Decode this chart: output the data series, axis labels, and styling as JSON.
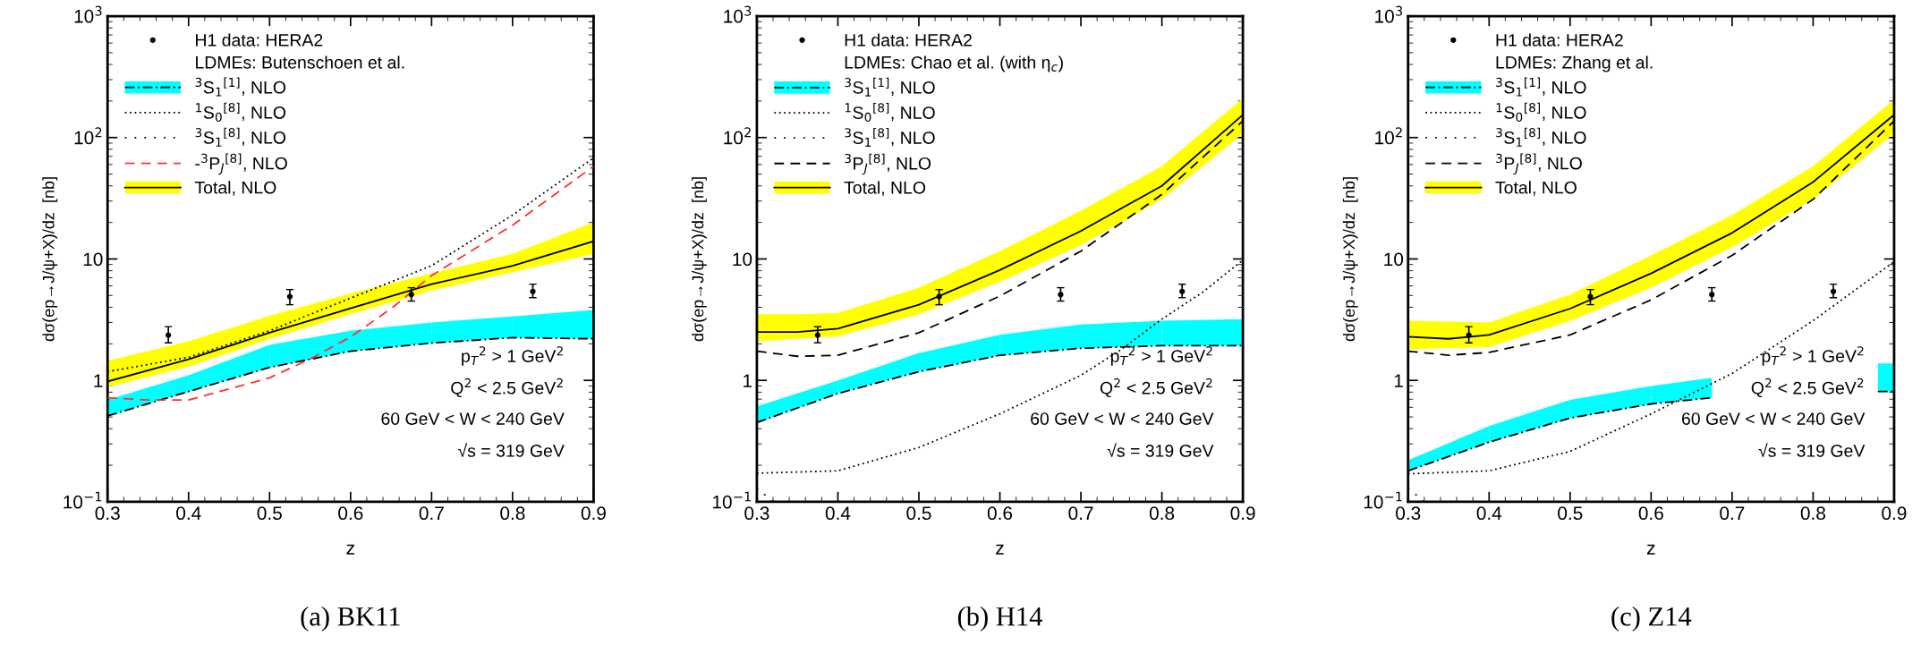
{
  "chart_data": [
    {
      "type": "line",
      "title": "(a) BK11",
      "xlabel": "z",
      "ylabel": "dσ(ep→J/ψ+X)/dz  [nb]",
      "log": "y",
      "grid": false,
      "legend": "top left",
      "legend_title": "LDMEs: Butenschoen et al.",
      "xlim": [
        0.3,
        0.9
      ],
      "ylim": [
        0.1,
        1000
      ],
      "xticks": [
        0.3,
        0.4,
        0.5,
        0.6,
        0.7,
        0.8,
        0.9
      ],
      "yticks": [
        {
          "value": 0.1,
          "label": "10$^{−1}$"
        },
        1,
        10,
        {
          "value": 100,
          "label": "10$^{2}$"
        },
        {
          "value": 1000,
          "label": "10$^{3}$"
        }
      ],
      "annotations": [
        "p$_{T}$$^{2}$ > 1 GeV$^{2}$",
        "Q$^{2}$ < 2.5 GeV$^{2}$",
        "60 GeV < W < 240 GeV",
        "√s = 319 GeV"
      ],
      "series": [
        {
          "name": "H1 data: HERA2",
          "type": "scatter",
          "marker": "circle",
          "color": "#000000",
          "x": [
            0.375,
            0.525,
            0.675,
            0.825
          ],
          "values": [
            2.36,
            4.9,
            5.1,
            5.4
          ],
          "errors": [
            [
              2.04,
              2.77
            ],
            [
              4.2,
              5.6
            ],
            [
              4.5,
              5.8
            ],
            [
              4.8,
              6.2
            ]
          ]
        },
        {
          "name": "$^{3}$S$_{1}$$^{[1]}$, NLO",
          "line_style": "dashdot",
          "color": "#000000",
          "colors": [
            "#00ffff",
            "#00ffff",
            "#00ffff",
            "#00ffff",
            "#00ffff",
            "#00ffff",
            "#00ffff"
          ],
          "x": [
            0.3,
            0.4,
            0.5,
            0.6,
            0.7,
            0.8,
            0.9
          ],
          "values": [
            0.51,
            0.81,
            1.28,
            1.74,
            2.03,
            2.25,
            2.2
          ],
          "lower": [
            0.51,
            0.81,
            1.28,
            1.74,
            2.03,
            2.25,
            2.2
          ],
          "upper": [
            0.69,
            1.1,
            1.96,
            2.56,
            3.0,
            3.36,
            3.8
          ]
        },
        {
          "name": "$^{1}$S$_{0}$$^{[8]}$, NLO",
          "line_style": "dotted",
          "color": "#000000",
          "x": [
            0.3,
            0.4,
            0.5,
            0.6,
            0.7,
            0.8,
            0.9
          ],
          "values": [
            1.18,
            1.55,
            2.56,
            4.76,
            8.8,
            23,
            68
          ]
        },
        {
          "name": "$^{3}$S$_{1}$$^{[8]}$, NLO",
          "line_style": "loosely dotted",
          "color": "#000000"
        },
        {
          "name": "-$^{3}$P$_{J}$$^{[8]}$, NLO",
          "line_style": "dashed",
          "color": "#ff3030",
          "x": [
            0.3,
            0.35,
            0.4,
            0.5,
            0.55,
            0.6,
            0.65,
            0.7,
            0.8,
            0.9
          ],
          "values": [
            0.72,
            0.69,
            0.69,
            1.05,
            1.5,
            2.28,
            3.9,
            7.3,
            19,
            58
          ]
        },
        {
          "name": "Total, NLO",
          "line_style": "solid",
          "color": "#000000",
          "colors": [
            "#ffff00",
            "#ffff00",
            "#ffff00",
            "#ffff00",
            "#ffff00",
            "#ffff00",
            "#ffff00"
          ],
          "x": [
            0.3,
            0.4,
            0.5,
            0.6,
            0.7,
            0.8,
            0.9
          ],
          "values": [
            0.98,
            1.49,
            2.47,
            3.93,
            6.2,
            8.8,
            14
          ],
          "lower": [
            0.88,
            1.3,
            2.2,
            3.5,
            5.5,
            7.8,
            11
          ],
          "upper": [
            1.45,
            2.1,
            3.4,
            5.2,
            7.6,
            11,
            20
          ]
        }
      ]
    },
    {
      "type": "line",
      "title": "(b) H14",
      "xlabel": "z",
      "ylabel": "dσ(ep→J/ψ+X)/dz  [nb]",
      "log": "y",
      "grid": false,
      "legend": "top left",
      "legend_title": "LDMEs: Chao et al. (with η$_{c}$)",
      "xlim": [
        0.3,
        0.9
      ],
      "ylim": [
        0.1,
        1000
      ],
      "xticks": [
        0.3,
        0.4,
        0.5,
        0.6,
        0.7,
        0.8,
        0.9
      ],
      "yticks": [
        {
          "value": 0.1,
          "label": "10$^{−1}$"
        },
        1,
        10,
        {
          "value": 100,
          "label": "10$^{2}$"
        },
        {
          "value": 1000,
          "label": "10$^{3}$"
        }
      ],
      "annotations": [
        "p$_{T}$$^{2}$ > 1 GeV$^{2}$",
        "Q$^{2}$ < 2.5 GeV$^{2}$",
        "60 GeV < W < 240 GeV",
        "√s = 319 GeV"
      ],
      "series": [
        {
          "name": "H1 data: HERA2",
          "type": "scatter",
          "marker": "circle",
          "color": "#000000",
          "x": [
            0.375,
            0.525,
            0.675,
            0.825
          ],
          "values": [
            2.36,
            4.9,
            5.1,
            5.4
          ],
          "errors": [
            [
              2.04,
              2.77
            ],
            [
              4.2,
              5.6
            ],
            [
              4.5,
              5.8
            ],
            [
              4.8,
              6.2
            ]
          ]
        },
        {
          "name": "$^{3}$S$_{1}$$^{[1]}$, NLO",
          "line_style": "dashdot",
          "color": "#000000",
          "colors": [
            "#00ffff",
            "#00ffff",
            "#00ffff",
            "#00ffff",
            "#00ffff",
            "#00ffff",
            "#00ffff"
          ],
          "x": [
            0.3,
            0.4,
            0.5,
            0.6,
            0.7,
            0.8,
            0.9
          ],
          "values": [
            0.45,
            0.78,
            1.18,
            1.61,
            1.84,
            1.93,
            1.93
          ],
          "lower": [
            0.45,
            0.78,
            1.18,
            1.61,
            1.84,
            1.93,
            1.93
          ],
          "upper": [
            0.61,
            1.0,
            1.68,
            2.37,
            2.88,
            3.1,
            3.2
          ]
        },
        {
          "name": "$^{1}$S$_{0}$$^{[8]}$, NLO",
          "line_style": "dotted",
          "color": "#000000",
          "x": [
            0.3,
            0.4,
            0.5,
            0.6,
            0.7,
            0.75,
            0.8,
            0.85,
            0.9
          ],
          "values": [
            0.172,
            0.18,
            0.28,
            0.53,
            1.1,
            1.8,
            3.2,
            5.3,
            9.8
          ]
        },
        {
          "name": "$^{3}$S$_{1}$$^{[8]}$, NLO",
          "line_style": "loosely dotted",
          "color": "#000000",
          "x": [
            0.3,
            0.32
          ],
          "values": [
            0.13,
            0.1
          ]
        },
        {
          "name": "$^{3}$P$_{J}$$^{[8]}$, NLO",
          "line_style": "dashed",
          "color": "#000000",
          "x": [
            0.3,
            0.35,
            0.4,
            0.5,
            0.6,
            0.7,
            0.8,
            0.9
          ],
          "values": [
            1.74,
            1.58,
            1.61,
            2.47,
            4.95,
            11.6,
            34,
            137
          ]
        },
        {
          "name": "Total, NLO",
          "line_style": "solid",
          "color": "#000000",
          "colors": [
            "#ffff00",
            "#ffff00",
            "#ffff00",
            "#ffff00",
            "#ffff00",
            "#ffff00",
            "#ffff00",
            "#ffff00"
          ],
          "x": [
            0.3,
            0.35,
            0.4,
            0.5,
            0.6,
            0.7,
            0.8,
            0.9
          ],
          "values": [
            2.5,
            2.5,
            2.67,
            4.2,
            8.1,
            17,
            40,
            154
          ],
          "lower": [
            2.1,
            2.2,
            2.3,
            3.5,
            6.5,
            13,
            31,
            108
          ],
          "upper": [
            3.5,
            3.5,
            3.6,
            5.8,
            11.6,
            25,
            58,
            210
          ]
        }
      ]
    },
    {
      "type": "line",
      "title": "(c) Z14",
      "xlabel": "z",
      "ylabel": "dσ(ep→J/ψ+X)/dz  [nb]",
      "log": "y",
      "grid": false,
      "legend": "top left",
      "legend_title": "LDMEs: Zhang et al.",
      "xlim": [
        0.3,
        0.9
      ],
      "ylim": [
        0.1,
        1000
      ],
      "xticks": [
        0.3,
        0.4,
        0.5,
        0.6,
        0.7,
        0.8,
        0.9
      ],
      "yticks": [
        {
          "value": 0.1,
          "label": "10$^{−1}$"
        },
        1,
        10,
        {
          "value": 100,
          "label": "10$^{2}$"
        },
        {
          "value": 1000,
          "label": "10$^{3}$"
        }
      ],
      "annotations": [
        "p$_{T}$$^{2}$ > 1 GeV$^{2}$",
        "Q$^{2}$ < 2.5 GeV$^{2}$",
        "60 GeV < W < 240 GeV",
        "√s = 319 GeV"
      ],
      "series": [
        {
          "name": "H1 data: HERA2",
          "type": "scatter",
          "marker": "circle",
          "color": "#000000",
          "x": [
            0.375,
            0.525,
            0.675,
            0.825
          ],
          "values": [
            2.36,
            4.9,
            5.1,
            5.4
          ],
          "errors": [
            [
              2.04,
              2.77
            ],
            [
              4.2,
              5.6
            ],
            [
              4.5,
              5.8
            ],
            [
              4.8,
              6.2
            ]
          ]
        },
        {
          "name": "$^{3}$S$_{1}$$^{[1]}$, NLO",
          "line_style": "dashdot",
          "color": "#000000",
          "colors": [
            "#00ffff",
            "#00ffff",
            "#00ffff",
            "#00ffff",
            "#00ffff",
            "#00ffff",
            "#00ffff",
            "#00ffff"
          ],
          "x": [
            0.3,
            0.4,
            0.5,
            0.6,
            0.675,
            0.8,
            0.88,
            0.9
          ],
          "values": [
            0.18,
            0.31,
            0.49,
            0.64,
            0.72,
            null,
            0.81,
            0.81
          ],
          "lower": [
            0.18,
            0.31,
            0.49,
            0.64,
            0.72,
            null,
            0.81,
            0.81
          ],
          "upper": [
            0.22,
            0.42,
            0.69,
            0.9,
            1.05,
            null,
            1.38,
            1.38
          ]
        },
        {
          "name": "$^{1}$S$_{0}$$^{[8]}$, NLO",
          "line_style": "dotted",
          "color": "#000000",
          "x": [
            0.3,
            0.4,
            0.5,
            0.6,
            0.7,
            0.8,
            0.9
          ],
          "values": [
            0.17,
            0.18,
            0.26,
            0.53,
            1.14,
            3.1,
            9.5
          ]
        },
        {
          "name": "$^{3}$S$_{1}$$^{[8]}$, NLO",
          "line_style": "loosely dotted",
          "color": "#000000",
          "x": [
            0.3,
            0.32
          ],
          "values": [
            0.13,
            0.1
          ]
        },
        {
          "name": "$^{3}$P$_{J}$$^{[8]}$, NLO",
          "line_style": "dashed",
          "color": "#000000",
          "x": [
            0.3,
            0.35,
            0.4,
            0.5,
            0.6,
            0.7,
            0.8,
            0.9
          ],
          "values": [
            1.74,
            1.61,
            1.7,
            2.37,
            4.6,
            10.7,
            31,
            137
          ]
        },
        {
          "name": "Total, NLO",
          "line_style": "solid",
          "color": "#000000",
          "colors": [
            "#ffff00",
            "#ffff00",
            "#ffff00",
            "#ffff00",
            "#ffff00",
            "#ffff00",
            "#ffff00",
            "#ffff00"
          ],
          "x": [
            0.3,
            0.35,
            0.4,
            0.5,
            0.6,
            0.7,
            0.8,
            0.9
          ],
          "values": [
            2.29,
            2.2,
            2.37,
            3.9,
            7.6,
            16.4,
            43,
            154
          ],
          "lower": [
            1.8,
            1.85,
            1.88,
            3.1,
            5.8,
            12.5,
            31,
            108
          ],
          "upper": [
            3.1,
            3.05,
            3.0,
            5.1,
            10.7,
            23,
            58,
            205
          ]
        }
      ]
    }
  ]
}
